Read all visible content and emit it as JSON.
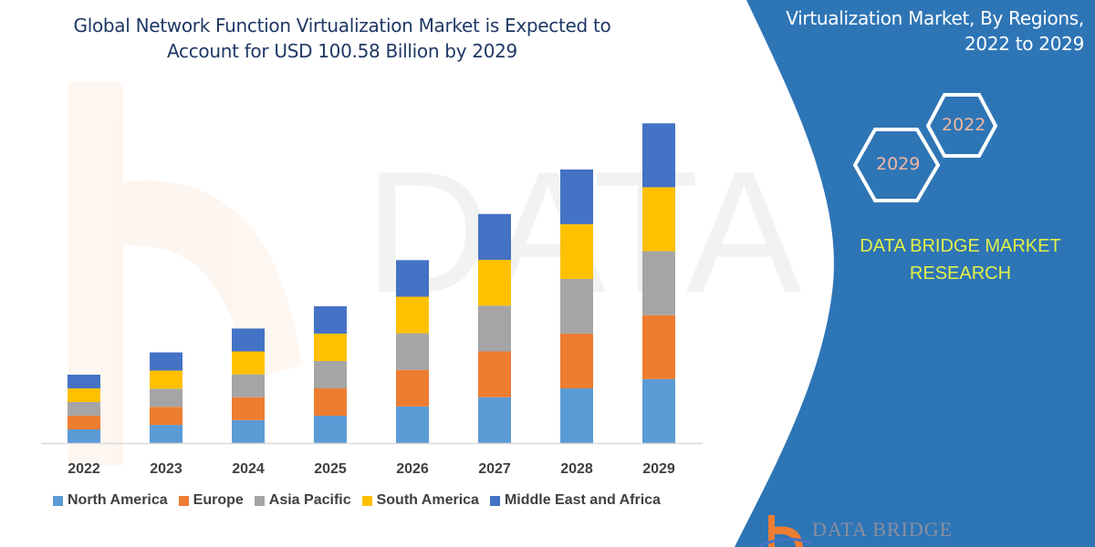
{
  "header": {
    "title_line1": "Global Network Function Virtualization Market is Expected to",
    "title_line2": "Account for USD 100.58 Billion by 2029"
  },
  "side_panel": {
    "title_line1": "Virtualization Market, By Regions,",
    "title_line2": "2022 to 2029",
    "hex_start": "2022",
    "hex_end": "2029",
    "brand_line1": "DATA BRIDGE MARKET",
    "brand_line2": "RESEARCH",
    "logo_text": "DATA BRIDGE",
    "colors": {
      "panel": "#2e75b6",
      "brand_text": "#e2f048",
      "hex_text": "#f4b8a0"
    }
  },
  "chart_data": {
    "type": "bar",
    "stacked": true,
    "title": "Global Network Function Virtualization Market is Expected to Account for USD 100.58 Billion by 2029",
    "xlabel": "",
    "ylabel": "",
    "ylim": [
      0,
      100.58
    ],
    "grid": false,
    "y_axis_shown": false,
    "legend_position": "bottom",
    "categories": [
      "2022",
      "2023",
      "2024",
      "2025",
      "2026",
      "2027",
      "2028",
      "2029"
    ],
    "series": [
      {
        "name": "North America",
        "color": "#5b9bd5",
        "values": [
          4.3,
          5.7,
          7.2,
          8.6,
          11.5,
          14.4,
          17.2,
          20.1
        ]
      },
      {
        "name": "Europe",
        "color": "#ed7d31",
        "values": [
          4.3,
          5.7,
          7.2,
          8.6,
          11.5,
          14.4,
          17.2,
          20.1
        ]
      },
      {
        "name": "Asia Pacific",
        "color": "#a5a5a5",
        "values": [
          4.3,
          5.7,
          7.2,
          8.6,
          11.5,
          14.4,
          17.2,
          20.1
        ]
      },
      {
        "name": "South America",
        "color": "#ffc000",
        "values": [
          4.3,
          5.7,
          7.2,
          8.6,
          11.5,
          14.4,
          17.2,
          20.1
        ]
      },
      {
        "name": "Middle East and Africa",
        "color": "#4472c4",
        "values": [
          4.3,
          5.7,
          7.2,
          8.6,
          11.5,
          14.4,
          17.2,
          20.1
        ]
      }
    ]
  }
}
